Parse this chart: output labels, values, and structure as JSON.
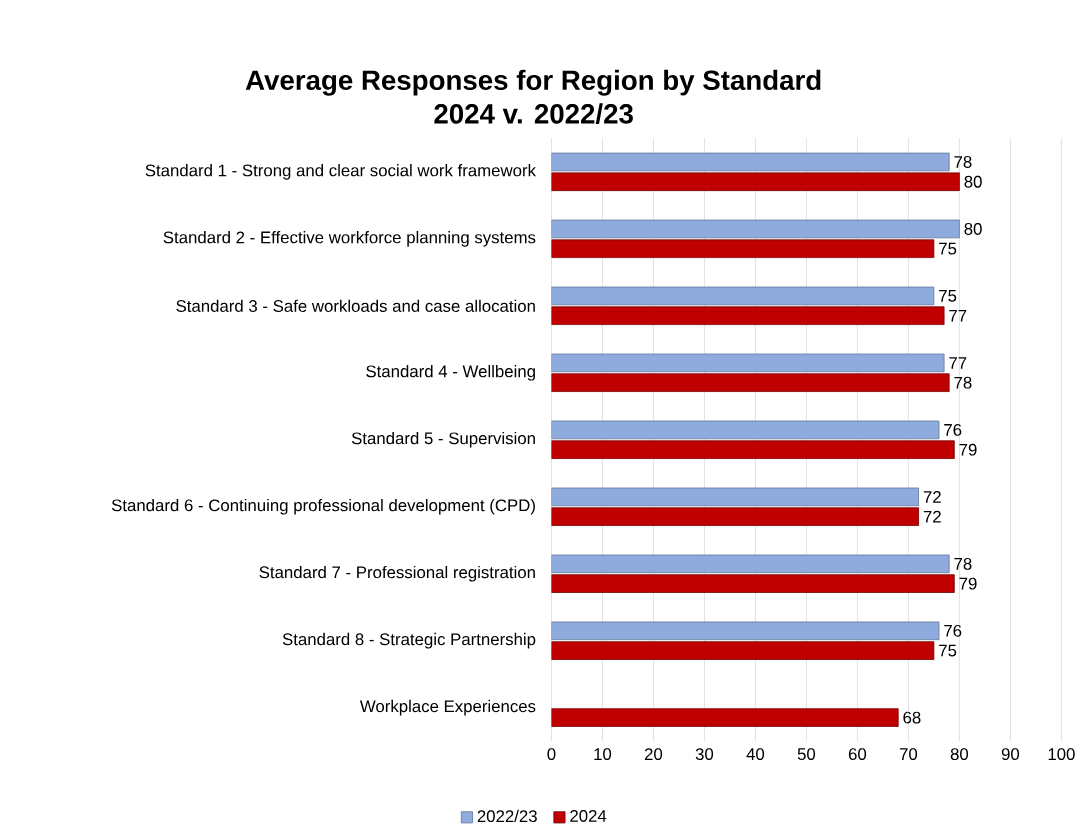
{
  "chart_data": {
    "type": "bar",
    "orientation": "horizontal",
    "title": "Average Responses for Region by Standard",
    "subtitle": "2024 v. 2022/23",
    "categories": [
      "Standard 1 - Strong and clear social work framework",
      "Standard 2 - Effective workforce planning systems",
      "Standard 3 - Safe workloads and case allocation",
      "Standard 4 - Wellbeing",
      "Standard 5 - Supervision",
      "Standard 6 - Continuing professional development (CPD)",
      "Standard 7 - Professional registration",
      "Standard 8 - Strategic Partnership",
      "Workplace Experiences"
    ],
    "series": [
      {
        "name": "2022/23",
        "color": "#8faadc",
        "values": [
          78,
          80,
          75,
          77,
          76,
          72,
          78,
          76,
          null
        ]
      },
      {
        "name": "2024",
        "color": "#c00000",
        "values": [
          80,
          75,
          77,
          78,
          79,
          72,
          79,
          75,
          68
        ]
      }
    ],
    "xlim": [
      0,
      100
    ],
    "xticks": [
      0,
      10,
      20,
      30,
      40,
      50,
      60,
      70,
      80,
      90,
      100
    ],
    "grid": "x",
    "legend": "bottom",
    "data_labels": true
  }
}
